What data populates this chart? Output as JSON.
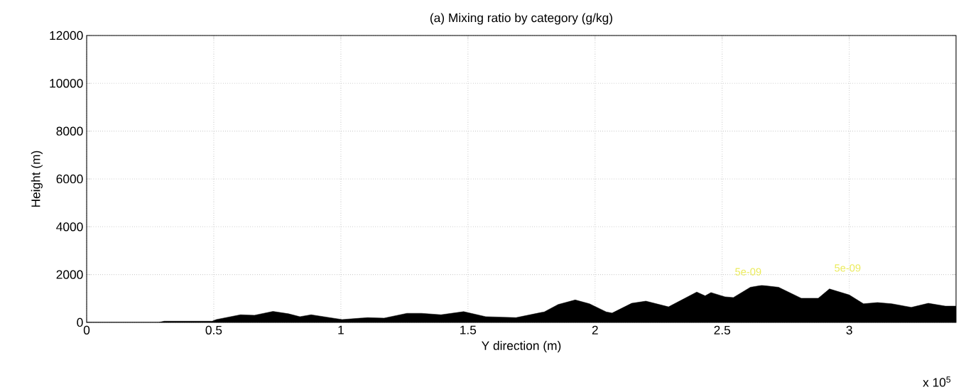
{
  "chart_data": {
    "type": "area",
    "title": "(a) Mixing ratio by category (g/kg)",
    "xlabel": "Y direction (m)",
    "ylabel": "Height (m)",
    "x": [
      0,
      0.283,
      0.305,
      0.494,
      0.51,
      0.605,
      0.66,
      0.733,
      0.794,
      0.839,
      0.883,
      0.95,
      1.005,
      1.105,
      1.17,
      1.26,
      1.317,
      1.394,
      1.483,
      1.57,
      1.689,
      1.8,
      1.855,
      1.922,
      1.978,
      2.044,
      2.067,
      2.144,
      2.2,
      2.289,
      2.4,
      2.433,
      2.456,
      2.511,
      2.544,
      2.611,
      2.656,
      2.722,
      2.811,
      2.878,
      2.922,
      3.0,
      3.056,
      3.111,
      3.167,
      3.244,
      3.311,
      3.378,
      3.42
    ],
    "values": [
      0,
      0,
      50,
      50,
      120,
      320,
      300,
      460,
      360,
      240,
      320,
      210,
      120,
      200,
      180,
      380,
      380,
      320,
      450,
      240,
      200,
      440,
      750,
      940,
      780,
      440,
      390,
      800,
      890,
      650,
      1270,
      1110,
      1250,
      1070,
      1040,
      1470,
      1550,
      1470,
      1010,
      1010,
      1400,
      1150,
      780,
      830,
      780,
      630,
      800,
      680,
      680
    ],
    "color": "#000000",
    "xlim": [
      0,
      3.42
    ],
    "ylim": [
      0,
      12000
    ],
    "xticks": [
      0,
      0.5,
      1,
      1.5,
      2,
      2.5,
      3
    ],
    "yticks": [
      0,
      2000,
      4000,
      6000,
      8000,
      10000,
      12000
    ],
    "grid": true,
    "line_style": "dotted",
    "annotations": [
      "5e-09",
      "5e-09",
      "x 10$^{5}$"
    ]
  }
}
